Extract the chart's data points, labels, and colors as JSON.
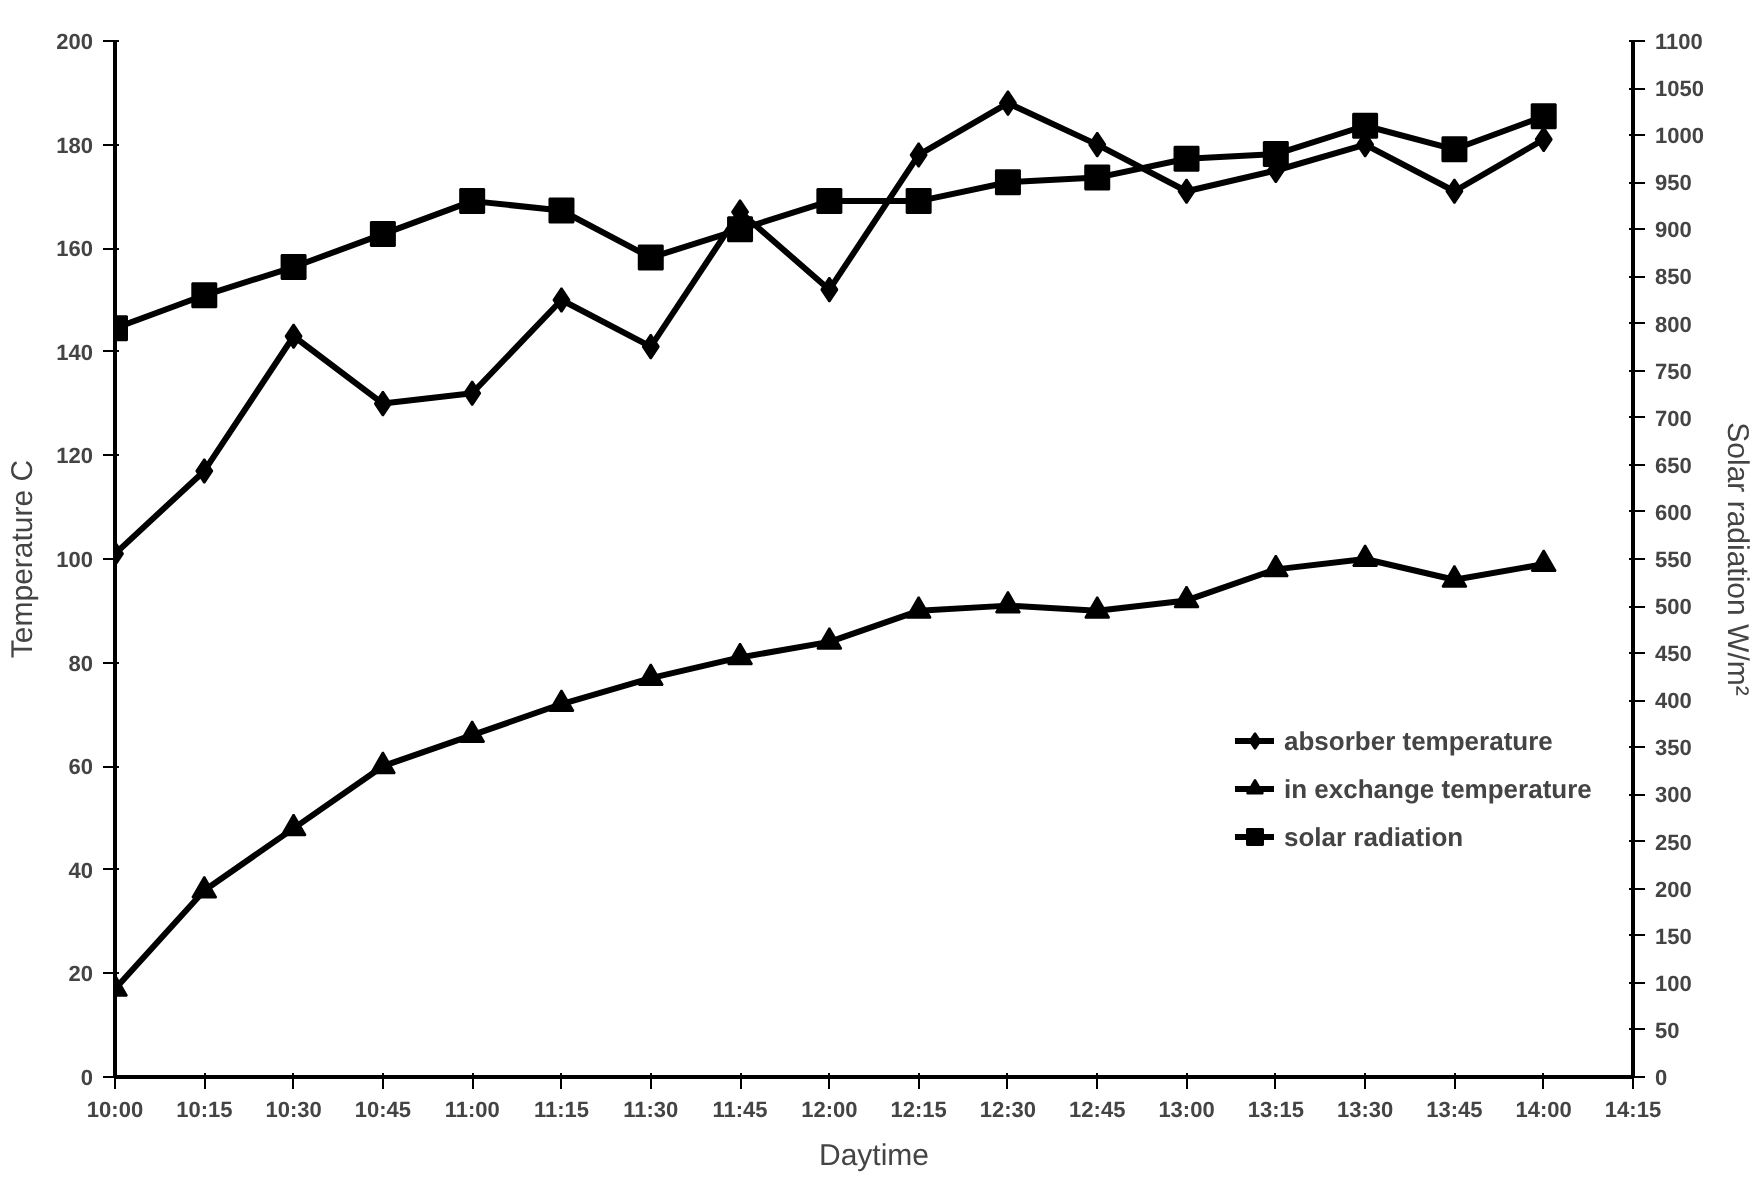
{
  "chart_data": {
    "type": "line",
    "xlabel": "Daytime",
    "ylabel": "Temperature C",
    "y2label": "Solar radiation W/m²",
    "x": [
      10,
      10.25,
      10.5,
      10.75,
      11,
      11.25,
      11.5,
      11.75,
      12,
      12.25,
      12.5,
      12.75,
      13,
      13.25,
      13.5,
      13.75,
      14
    ],
    "xlim": [
      10,
      14.25
    ],
    "xticks": [
      {
        "value": 10,
        "label": "10:00"
      },
      {
        "value": 10.25,
        "label": "10:15"
      },
      {
        "value": 10.5,
        "label": "10:30"
      },
      {
        "value": 10.75,
        "label": "10:45"
      },
      {
        "value": 11,
        "label": "11:00"
      },
      {
        "value": 11.25,
        "label": "11:15"
      },
      {
        "value": 11.5,
        "label": "11:30"
      },
      {
        "value": 11.75,
        "label": "11:45"
      },
      {
        "value": 12,
        "label": "12:00"
      },
      {
        "value": 12.25,
        "label": "12:15"
      },
      {
        "value": 12.5,
        "label": "12:30"
      },
      {
        "value": 12.75,
        "label": "12:45"
      },
      {
        "value": 13,
        "label": "13:00"
      },
      {
        "value": 13.25,
        "label": "13:15"
      },
      {
        "value": 13.5,
        "label": "13:30"
      },
      {
        "value": 13.75,
        "label": "13:45"
      },
      {
        "value": 14,
        "label": "14:00"
      },
      {
        "value": 14.25,
        "label": "14:15"
      }
    ],
    "ylim": [
      0,
      200
    ],
    "yticks": [
      0,
      20,
      40,
      60,
      80,
      100,
      120,
      140,
      160,
      180,
      200
    ],
    "y2lim": [
      0,
      1100
    ],
    "y2ticks": [
      0,
      50,
      100,
      150,
      200,
      250,
      300,
      350,
      400,
      450,
      500,
      550,
      600,
      650,
      700,
      750,
      800,
      850,
      900,
      950,
      1000,
      1050,
      1100
    ],
    "series": [
      {
        "name": "absorber temperature",
        "color": "#000000",
        "marker": "diamond",
        "values": [
          101,
          117,
          143,
          130,
          132,
          150,
          141,
          167,
          152,
          178,
          188,
          180,
          171,
          175,
          180,
          171,
          181
        ]
      },
      {
        "name": "in exchange temperature",
        "color": "#000000",
        "marker": "triangle",
        "values": [
          17,
          36,
          48,
          60,
          66,
          72,
          77,
          81,
          84,
          90,
          91,
          90,
          92,
          98,
          100,
          96,
          99
        ]
      },
      {
        "name": "solar radiation",
        "color": "#000000",
        "marker": "square",
        "axis": "y2",
        "values": [
          795,
          830,
          860,
          895,
          930,
          920,
          870,
          900,
          930,
          930,
          950,
          955,
          975,
          980,
          1010,
          985,
          1020
        ]
      }
    ],
    "grid": false,
    "legend": "bottom right",
    "line_style": "solid"
  }
}
